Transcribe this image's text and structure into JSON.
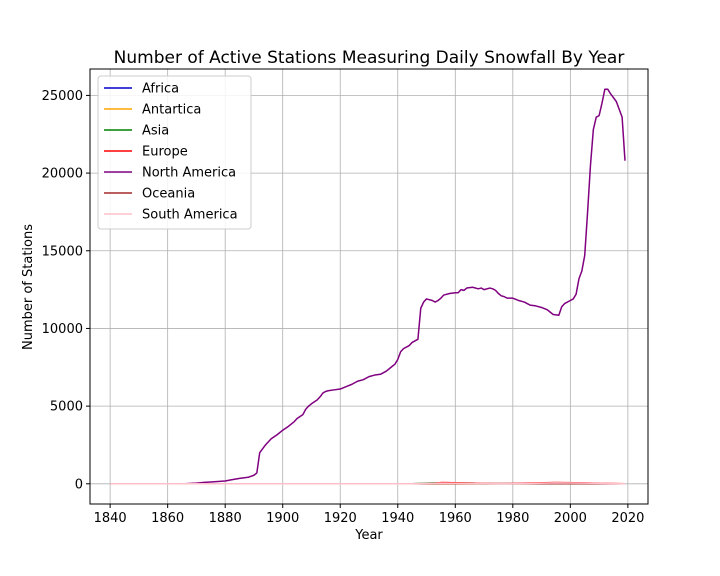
{
  "chart_data": {
    "type": "line",
    "title": "Number of Active Stations Measuring Daily Snowfall By Year",
    "xlabel": "Year",
    "ylabel": "Number of Stations",
    "xlim": [
      1833,
      2027
    ],
    "ylim": [
      -1300,
      26700
    ],
    "xticks": [
      1840,
      1860,
      1880,
      1900,
      1920,
      1940,
      1960,
      1980,
      2000,
      2020
    ],
    "yticks": [
      0,
      5000,
      10000,
      15000,
      20000,
      25000
    ],
    "grid": true,
    "legend": "top-left",
    "series": [
      {
        "name": "Africa",
        "color": "#0000cc",
        "points": [
          [
            1840,
            0
          ],
          [
            2019,
            0
          ]
        ]
      },
      {
        "name": "Antartica",
        "color": "#ffa500",
        "points": [
          [
            1840,
            0
          ],
          [
            1950,
            0
          ],
          [
            1955,
            20
          ],
          [
            1960,
            10
          ],
          [
            2019,
            0
          ]
        ]
      },
      {
        "name": "Asia",
        "color": "#008000",
        "points": [
          [
            1840,
            0
          ],
          [
            1945,
            0
          ],
          [
            1952,
            60
          ],
          [
            1960,
            50
          ],
          [
            1966,
            40
          ],
          [
            1970,
            10
          ],
          [
            2019,
            0
          ]
        ]
      },
      {
        "name": "Europe",
        "color": "#ff0000",
        "points": [
          [
            1840,
            0
          ],
          [
            1950,
            0
          ],
          [
            1955,
            80
          ],
          [
            1965,
            50
          ],
          [
            1975,
            10
          ],
          [
            1985,
            40
          ],
          [
            1995,
            80
          ],
          [
            2005,
            60
          ],
          [
            2019,
            0
          ]
        ]
      },
      {
        "name": "North America",
        "color": "#800080",
        "points": [
          [
            1840,
            0
          ],
          [
            1866,
            0
          ],
          [
            1870,
            40
          ],
          [
            1872,
            80
          ],
          [
            1875,
            120
          ],
          [
            1880,
            180
          ],
          [
            1882,
            250
          ],
          [
            1885,
            350
          ],
          [
            1888,
            420
          ],
          [
            1890,
            550
          ],
          [
            1891,
            700
          ],
          [
            1892,
            2000
          ],
          [
            1894,
            2500
          ],
          [
            1896,
            2900
          ],
          [
            1898,
            3150
          ],
          [
            1900,
            3450
          ],
          [
            1902,
            3700
          ],
          [
            1904,
            4000
          ],
          [
            1905,
            4200
          ],
          [
            1907,
            4450
          ],
          [
            1908,
            4800
          ],
          [
            1909,
            5000
          ],
          [
            1910,
            5150
          ],
          [
            1912,
            5400
          ],
          [
            1913,
            5600
          ],
          [
            1914,
            5850
          ],
          [
            1915,
            5950
          ],
          [
            1916,
            6000
          ],
          [
            1918,
            6050
          ],
          [
            1920,
            6100
          ],
          [
            1922,
            6250
          ],
          [
            1924,
            6400
          ],
          [
            1926,
            6600
          ],
          [
            1928,
            6700
          ],
          [
            1930,
            6900
          ],
          [
            1932,
            7000
          ],
          [
            1934,
            7050
          ],
          [
            1936,
            7250
          ],
          [
            1938,
            7550
          ],
          [
            1939,
            7700
          ],
          [
            1940,
            8000
          ],
          [
            1941,
            8500
          ],
          [
            1942,
            8700
          ],
          [
            1944,
            8900
          ],
          [
            1945,
            9100
          ],
          [
            1947,
            9300
          ],
          [
            1948,
            11300
          ],
          [
            1949,
            11700
          ],
          [
            1950,
            11900
          ],
          [
            1952,
            11800
          ],
          [
            1953,
            11700
          ],
          [
            1954,
            11800
          ],
          [
            1955,
            11950
          ],
          [
            1956,
            12150
          ],
          [
            1958,
            12250
          ],
          [
            1960,
            12300
          ],
          [
            1961,
            12300
          ],
          [
            1962,
            12500
          ],
          [
            1963,
            12450
          ],
          [
            1964,
            12600
          ],
          [
            1966,
            12650
          ],
          [
            1968,
            12550
          ],
          [
            1969,
            12600
          ],
          [
            1970,
            12500
          ],
          [
            1972,
            12600
          ],
          [
            1973,
            12550
          ],
          [
            1974,
            12450
          ],
          [
            1975,
            12250
          ],
          [
            1976,
            12100
          ],
          [
            1977,
            12050
          ],
          [
            1978,
            11950
          ],
          [
            1980,
            11950
          ],
          [
            1982,
            11800
          ],
          [
            1984,
            11700
          ],
          [
            1985,
            11600
          ],
          [
            1986,
            11500
          ],
          [
            1988,
            11450
          ],
          [
            1990,
            11350
          ],
          [
            1992,
            11200
          ],
          [
            1993,
            11050
          ],
          [
            1994,
            10900
          ],
          [
            1996,
            10850
          ],
          [
            1997,
            11400
          ],
          [
            1998,
            11600
          ],
          [
            2000,
            11800
          ],
          [
            2001,
            11900
          ],
          [
            2002,
            12200
          ],
          [
            2003,
            13200
          ],
          [
            2004,
            13700
          ],
          [
            2005,
            14700
          ],
          [
            2006,
            17500
          ],
          [
            2007,
            20500
          ],
          [
            2008,
            22800
          ],
          [
            2009,
            23600
          ],
          [
            2010,
            23700
          ],
          [
            2011,
            24500
          ],
          [
            2012,
            25400
          ],
          [
            2013,
            25400
          ],
          [
            2014,
            25100
          ],
          [
            2016,
            24600
          ],
          [
            2017,
            24100
          ],
          [
            2018,
            23600
          ],
          [
            2019,
            20800
          ]
        ]
      },
      {
        "name": "Oceania",
        "color": "#a52a2a",
        "points": [
          [
            1840,
            0
          ],
          [
            1950,
            0
          ],
          [
            1955,
            30
          ],
          [
            1965,
            20
          ],
          [
            2019,
            0
          ]
        ]
      },
      {
        "name": "South America",
        "color": "#ffc0cb",
        "points": [
          [
            1840,
            0
          ],
          [
            1945,
            0
          ],
          [
            1955,
            40
          ],
          [
            1965,
            30
          ],
          [
            1975,
            10
          ],
          [
            1985,
            20
          ],
          [
            1995,
            60
          ],
          [
            2005,
            40
          ],
          [
            2019,
            0
          ]
        ]
      }
    ]
  }
}
